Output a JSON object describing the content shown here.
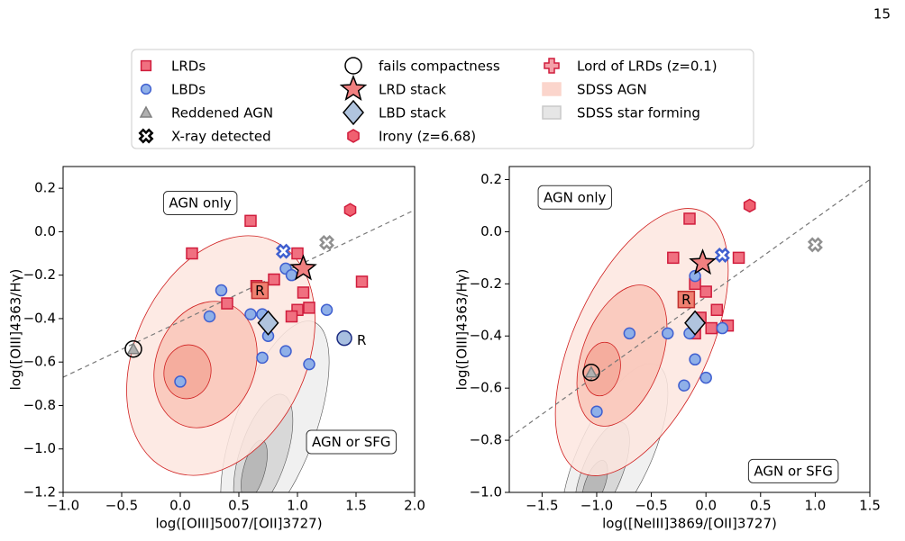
{
  "page_number": "15",
  "legend": [
    {
      "name": "LRDs",
      "marker": "square",
      "color": "#f07080",
      "edge": "#d01c3c"
    },
    {
      "name": "LBDs",
      "marker": "circle",
      "color": "#8fb0e8",
      "edge": "#4060d0"
    },
    {
      "name": "Reddened AGN",
      "marker": "triangle",
      "color": "#b0b0b0",
      "edge": "#808080"
    },
    {
      "name": "X-ray detected",
      "marker": "xcross",
      "color": "#ffffff",
      "edge": "#000000"
    },
    {
      "name": "fails compactness",
      "marker": "ring",
      "color": "#ffffff",
      "edge": "#000000"
    },
    {
      "name": "LRD stack",
      "marker": "star",
      "color": "#f08080",
      "edge": "#000000"
    },
    {
      "name": "LBD stack",
      "marker": "diamond",
      "color": "#b0c4de",
      "edge": "#000000"
    },
    {
      "name": "Irony (z=6.68)",
      "marker": "hexagon",
      "color": "#f06070",
      "edge": "#d01c3c"
    },
    {
      "name": "Lord of LRDs (z=0.1)",
      "marker": "plus",
      "color": "#f4a0a8",
      "edge": "#d01c3c"
    },
    {
      "name": "SDSS AGN",
      "marker": "patch",
      "color": "#fbd5cc",
      "edge": "#fbd5cc"
    },
    {
      "name": "SDSS star forming",
      "marker": "patch",
      "color": "#e6e6e6",
      "edge": "#c8c8c8"
    }
  ],
  "chart_data": [
    {
      "type": "scatter",
      "xlabel": "log([OIII]5007/[OII]3727)",
      "ylabel": "log([OIII]4363/Hγ)",
      "xlim": [
        -1.0,
        2.0
      ],
      "ylim": [
        -1.2,
        0.3
      ],
      "xticks": [
        {
          "value": -1.0,
          "label": "−1.0"
        },
        {
          "value": -0.5,
          "label": "−0.5"
        },
        {
          "value": 0.0,
          "label": "0.0"
        },
        0.5,
        {
          "value": 1.0,
          "label": "1.0"
        },
        1.5,
        {
          "value": 2.0,
          "label": "2.0"
        }
      ],
      "yticks": [
        {
          "value": -1.2,
          "label": "−1.2"
        },
        {
          "value": -1.0,
          "label": "−1.0"
        },
        {
          "value": -0.8,
          "label": "−0.8"
        },
        {
          "value": -0.6,
          "label": "−0.6"
        },
        {
          "value": -0.4,
          "label": "−0.4"
        },
        {
          "value": -0.2,
          "label": "−0.2"
        },
        {
          "value": 0.0,
          "label": "0.0"
        },
        0.2
      ],
      "annotations": [
        "AGN only",
        "AGN or SFG"
      ],
      "demarcation": {
        "x": [
          -1.0,
          2.0
        ],
        "y": [
          -0.67,
          0.1
        ]
      },
      "series": [
        {
          "marker": "square",
          "color": "#f07080",
          "edge": "#d01c3c",
          "x": [
            0.6,
            0.1,
            1.0,
            1.55,
            0.8,
            0.65,
            0.4,
            1.0,
            1.05,
            1.1,
            0.95
          ],
          "y": [
            0.05,
            -0.1,
            -0.1,
            -0.23,
            -0.22,
            -0.25,
            -0.33,
            -0.36,
            -0.28,
            -0.35,
            -0.39
          ]
        },
        {
          "marker": "circle",
          "color": "#8fb0e8",
          "edge": "#4060d0",
          "x": [
            0.9,
            0.95,
            0.35,
            0.25,
            0.6,
            0.7,
            0.75,
            0.7,
            0.9,
            1.1,
            1.25,
            0.0
          ],
          "y": [
            -0.17,
            -0.2,
            -0.27,
            -0.39,
            -0.38,
            -0.38,
            -0.48,
            -0.58,
            -0.55,
            -0.61,
            -0.36,
            -0.69
          ]
        },
        {
          "marker": "bigcircle",
          "color": "#a8bfe0",
          "edge": "#1a2a80",
          "label": "R",
          "x": [
            1.4
          ],
          "y": [
            -0.49
          ]
        },
        {
          "marker": "bigsquare",
          "color": "#f08070",
          "edge": "#c03030",
          "label": "R",
          "x": [
            0.68
          ],
          "y": [
            -0.27
          ]
        },
        {
          "marker": "triangle",
          "color": "#b0b0b0",
          "edge": "#808080",
          "x": [
            -0.4
          ],
          "y": [
            -0.54
          ]
        },
        {
          "marker": "ring",
          "color": "none",
          "edge": "#000000",
          "x": [
            -0.4
          ],
          "y": [
            -0.54
          ]
        },
        {
          "marker": "xcross",
          "color": "#ffffff",
          "edge": "#909090",
          "x": [
            1.25
          ],
          "y": [
            -0.05
          ]
        },
        {
          "marker": "xcross",
          "color": "#ffffff",
          "edge": "#4060d0",
          "x": [
            0.88
          ],
          "y": [
            -0.09
          ]
        },
        {
          "marker": "star",
          "color": "#f08080",
          "edge": "#000000",
          "x": [
            1.05
          ],
          "y": [
            -0.17
          ]
        },
        {
          "marker": "diamond",
          "color": "#b0c4de",
          "edge": "#000000",
          "x": [
            0.75
          ],
          "y": [
            -0.42
          ]
        },
        {
          "marker": "hexagon",
          "color": "#f06070",
          "edge": "#d01c3c",
          "x": [
            1.45
          ],
          "y": [
            0.1
          ]
        }
      ]
    },
    {
      "type": "scatter",
      "xlabel": "log([NeIII]3869/[OII]3727)",
      "ylabel": "log([OIII]4363/Hγ)",
      "xlim": [
        -1.8,
        1.5
      ],
      "ylim": [
        -1.0,
        0.25
      ],
      "xticks": [
        {
          "value": -1.5,
          "label": "−1.5"
        },
        {
          "value": -1.0,
          "label": "−1.0"
        },
        {
          "value": -0.5,
          "label": "−0.5"
        },
        {
          "value": 0.0,
          "label": "0.0"
        },
        0.5,
        {
          "value": 1.0,
          "label": "1.0"
        },
        1.5
      ],
      "yticks": [
        {
          "value": -1.0,
          "label": "−1.0"
        },
        {
          "value": -0.8,
          "label": "−0.8"
        },
        {
          "value": -0.6,
          "label": "−0.6"
        },
        {
          "value": -0.4,
          "label": "−0.4"
        },
        {
          "value": -0.2,
          "label": "−0.2"
        },
        {
          "value": 0.0,
          "label": "0.0"
        },
        0.2
      ],
      "annotations": [
        "AGN only",
        "AGN or SFG"
      ],
      "demarcation": {
        "x": [
          -1.8,
          1.5
        ],
        "y": [
          -0.79,
          0.2
        ]
      },
      "series": [
        {
          "marker": "square",
          "color": "#f07080",
          "edge": "#d01c3c",
          "x": [
            -0.15,
            -0.3,
            0.3,
            -0.1,
            0.0,
            0.1,
            -0.05,
            0.2,
            0.05,
            -0.1
          ],
          "y": [
            0.05,
            -0.1,
            -0.1,
            -0.2,
            -0.23,
            -0.3,
            -0.33,
            -0.36,
            -0.37,
            -0.39
          ]
        },
        {
          "marker": "circle",
          "color": "#8fb0e8",
          "edge": "#4060d0",
          "x": [
            -0.1,
            -0.7,
            -0.35,
            -0.15,
            -0.1,
            -0.2,
            0.0,
            0.15,
            -1.0
          ],
          "y": [
            -0.17,
            -0.39,
            -0.39,
            -0.39,
            -0.49,
            -0.59,
            -0.56,
            -0.37,
            -0.69
          ]
        },
        {
          "marker": "bigsquare",
          "color": "#f08070",
          "edge": "#c03030",
          "label": "R",
          "x": [
            -0.18
          ],
          "y": [
            -0.26
          ]
        },
        {
          "marker": "triangle",
          "color": "#b0b0b0",
          "edge": "#808080",
          "x": [
            -1.05
          ],
          "y": [
            -0.54
          ]
        },
        {
          "marker": "ring",
          "color": "none",
          "edge": "#000000",
          "x": [
            -1.05
          ],
          "y": [
            -0.54
          ]
        },
        {
          "marker": "xcross",
          "color": "#ffffff",
          "edge": "#909090",
          "x": [
            1.0
          ],
          "y": [
            -0.05
          ]
        },
        {
          "marker": "xcross",
          "color": "#ffffff",
          "edge": "#4060d0",
          "x": [
            0.15
          ],
          "y": [
            -0.09
          ]
        },
        {
          "marker": "star",
          "color": "#f08080",
          "edge": "#000000",
          "x": [
            -0.03
          ],
          "y": [
            -0.12
          ]
        },
        {
          "marker": "diamond",
          "color": "#b0c4de",
          "edge": "#000000",
          "x": [
            -0.1
          ],
          "y": [
            -0.35
          ]
        },
        {
          "marker": "hexagon",
          "color": "#f06070",
          "edge": "#d01c3c",
          "x": [
            0.4
          ],
          "y": [
            0.1
          ]
        }
      ]
    }
  ]
}
